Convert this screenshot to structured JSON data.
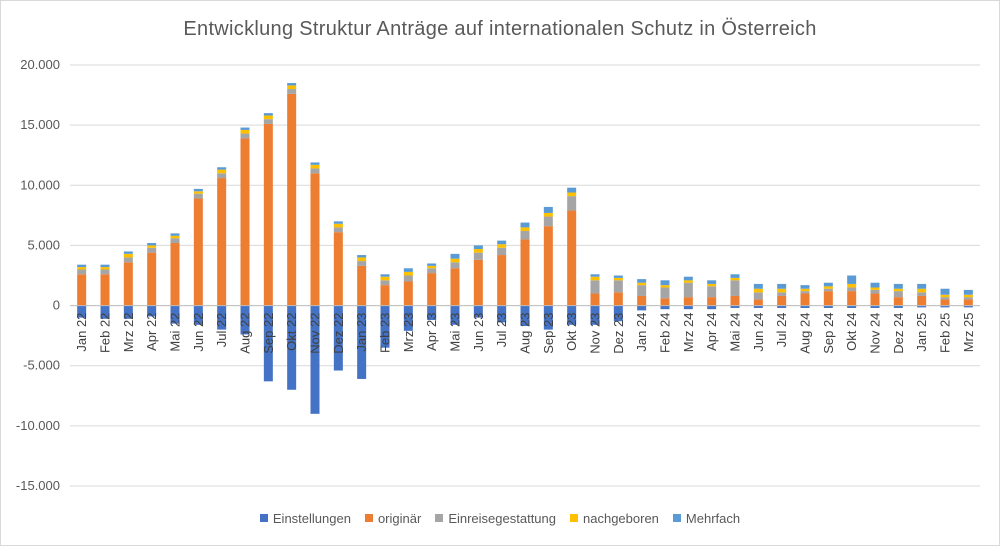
{
  "chart_data": {
    "type": "bar",
    "stacked": true,
    "title": "Entwicklung Struktur Anträge auf internationalen Schutz  in Österreich",
    "ylim": [
      -15000,
      20000
    ],
    "yticks": [
      "20.000",
      "15.000",
      "10.000",
      "5.000",
      "0",
      "-5.000",
      "-10.000",
      "-15.000"
    ],
    "ytick_values": [
      20000,
      15000,
      10000,
      5000,
      0,
      -5000,
      -10000,
      -15000
    ],
    "grid": true,
    "legend_position": "bottom",
    "categories": [
      "Jan 22",
      "Feb 22",
      "Mrz 22",
      "Apr 22",
      "Mai 22",
      "Jun 22",
      "Jul 22",
      "Aug 22",
      "Sep 22",
      "Okt 22",
      "Nov 22",
      "Dez 22",
      "Jan 23",
      "Feb 23",
      "Mrz 23",
      "Apr 23",
      "Mai 23",
      "Jun 23",
      "Jul 23",
      "Aug 23",
      "Sep 23",
      "Okt 23",
      "Nov 23",
      "Dez 23",
      "Jan 24",
      "Feb 24",
      "Mrz 24",
      "Apr 24",
      "Mai 24",
      "Jun 24",
      "Jul 24",
      "Aug 24",
      "Sep 24",
      "Okt 24",
      "Nov 24",
      "Dez 24",
      "Jan 25",
      "Feb 25",
      "Mrz 25"
    ],
    "series": [
      {
        "name": "Einstellungen",
        "color": "#4472c4",
        "values": [
          -1000,
          -1100,
          -1100,
          -900,
          -1500,
          -1600,
          -2000,
          -2400,
          -6300,
          -7000,
          -9000,
          -5400,
          -6100,
          -3500,
          -2100,
          -1200,
          -1600,
          -1000,
          -1400,
          -1700,
          -2000,
          -1600,
          -1600,
          -1300,
          -400,
          -300,
          -300,
          -300,
          -200,
          -200,
          -200,
          -200,
          -200,
          -200,
          -200,
          -200,
          -150,
          -150,
          -150
        ]
      },
      {
        "name": "originär",
        "color": "#ed7d31",
        "values": [
          2600,
          2600,
          3600,
          4400,
          5200,
          8900,
          10600,
          13900,
          15100,
          17600,
          11000,
          6100,
          3300,
          1700,
          2000,
          2700,
          3100,
          3800,
          4200,
          5500,
          6600,
          7900,
          1000,
          1100,
          800,
          600,
          700,
          700,
          800,
          500,
          800,
          1000,
          1200,
          1200,
          1000,
          700,
          800,
          500,
          500
        ]
      },
      {
        "name": "Einreisegestattung",
        "color": "#a5a5a5",
        "values": [
          400,
          400,
          400,
          400,
          400,
          400,
          400,
          400,
          400,
          400,
          400,
          400,
          400,
          400,
          500,
          400,
          500,
          600,
          600,
          700,
          800,
          1200,
          1100,
          1000,
          900,
          900,
          1200,
          900,
          1300,
          600,
          300,
          200,
          200,
          300,
          300,
          500,
          300,
          200,
          200
        ]
      },
      {
        "name": "nachgeboren",
        "color": "#ffc000",
        "values": [
          200,
          200,
          300,
          200,
          200,
          200,
          300,
          300,
          300,
          300,
          300,
          300,
          300,
          300,
          300,
          200,
          300,
          300,
          300,
          300,
          300,
          300,
          300,
          200,
          200,
          200,
          200,
          200,
          200,
          300,
          300,
          200,
          200,
          300,
          200,
          200,
          300,
          200,
          200
        ]
      },
      {
        "name": "Mehrfach",
        "color": "#5b9bd5",
        "values": [
          200,
          200,
          200,
          200,
          200,
          200,
          200,
          200,
          200,
          200,
          200,
          200,
          200,
          200,
          300,
          200,
          400,
          300,
          300,
          400,
          500,
          400,
          200,
          200,
          300,
          400,
          300,
          300,
          300,
          400,
          400,
          300,
          300,
          700,
          400,
          400,
          400,
          500,
          400
        ]
      }
    ]
  }
}
